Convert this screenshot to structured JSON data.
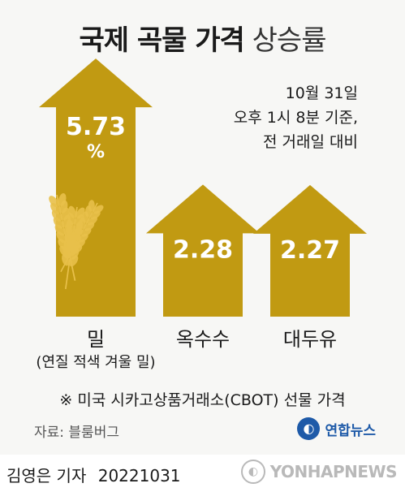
{
  "title_bold": "국제 곡물 가격",
  "title_light": "상승률",
  "note_lines": [
    "10월 31일",
    "오후 1시 8분 기준,",
    "전 거래일 대비"
  ],
  "chart_data": {
    "type": "bar",
    "title": "국제 곡물 가격 상승률",
    "categories": [
      "밀",
      "옥수수",
      "대두유"
    ],
    "category_sublabels": [
      "(연질 적색 겨울 밀)",
      "",
      ""
    ],
    "values": [
      5.73,
      2.28,
      2.27
    ],
    "value_labels": [
      "5.73",
      "2.28",
      "2.27"
    ],
    "unit": "%",
    "xlabel": "",
    "ylabel": "",
    "grid": false,
    "legend": "none"
  },
  "footnote": "※ 미국 시카고상품거래소(CBOT) 선물 가격",
  "source": "자료: 블룸버그",
  "logo_text": "연합뉴스",
  "byline_name": "김영은 기자",
  "byline_date": "20221031",
  "watermark": "YONHAPNEWS",
  "colors": {
    "arrow": "#c19a12",
    "arrow_label": "#ffffff",
    "background": "#f7f7f5",
    "wheat": "#e8c04a"
  }
}
